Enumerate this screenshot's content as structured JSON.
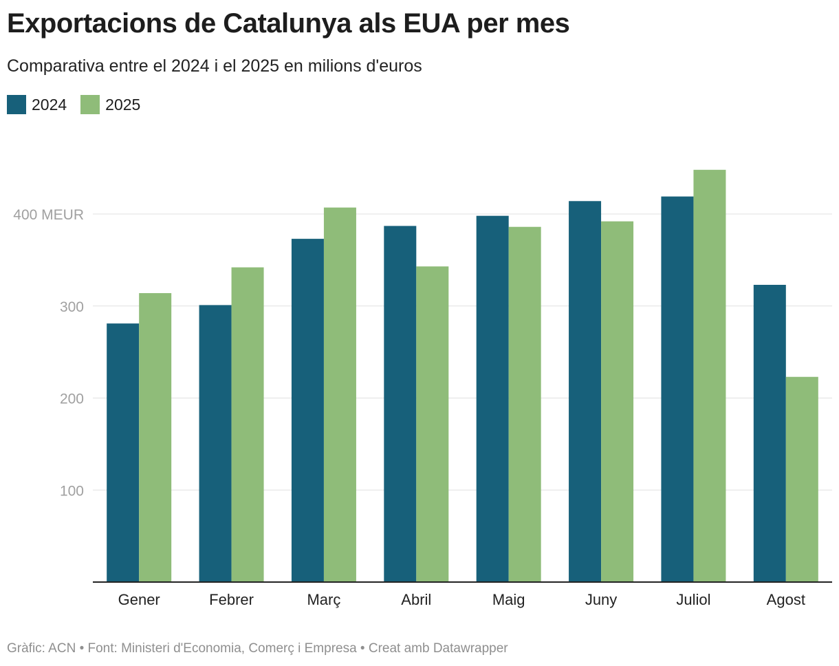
{
  "title": "Exportacions de Catalunya als EUA per mes",
  "subtitle": "Comparativa entre el 2024 i el 2025 en milions d'euros",
  "footer": "Gràfic: ACN • Font: Ministeri d'Economia, Comerç i Empresa • Creat amb Datawrapper",
  "chart_data": {
    "type": "bar",
    "title": "Exportacions de Catalunya als EUA per mes",
    "subtitle": "Comparativa entre el 2024 i el 2025 en milions d'euros",
    "xlabel": "",
    "ylabel": "",
    "ylim": [
      0,
      460
    ],
    "yticks": [
      100,
      200,
      300,
      400
    ],
    "ytick_labels": [
      "100",
      "200",
      "300",
      "400 MEUR"
    ],
    "grid": true,
    "legend_position": "top-left",
    "categories": [
      "Gener",
      "Febrer",
      "Març",
      "Abril",
      "Maig",
      "Juny",
      "Juliol",
      "Agost"
    ],
    "series": [
      {
        "name": "2024",
        "color": "#17607a",
        "values": [
          281,
          301,
          373,
          387,
          398,
          414,
          419,
          323
        ]
      },
      {
        "name": "2025",
        "color": "#8fbc79",
        "values": [
          314,
          342,
          407,
          343,
          386,
          392,
          448,
          223
        ]
      }
    ]
  }
}
